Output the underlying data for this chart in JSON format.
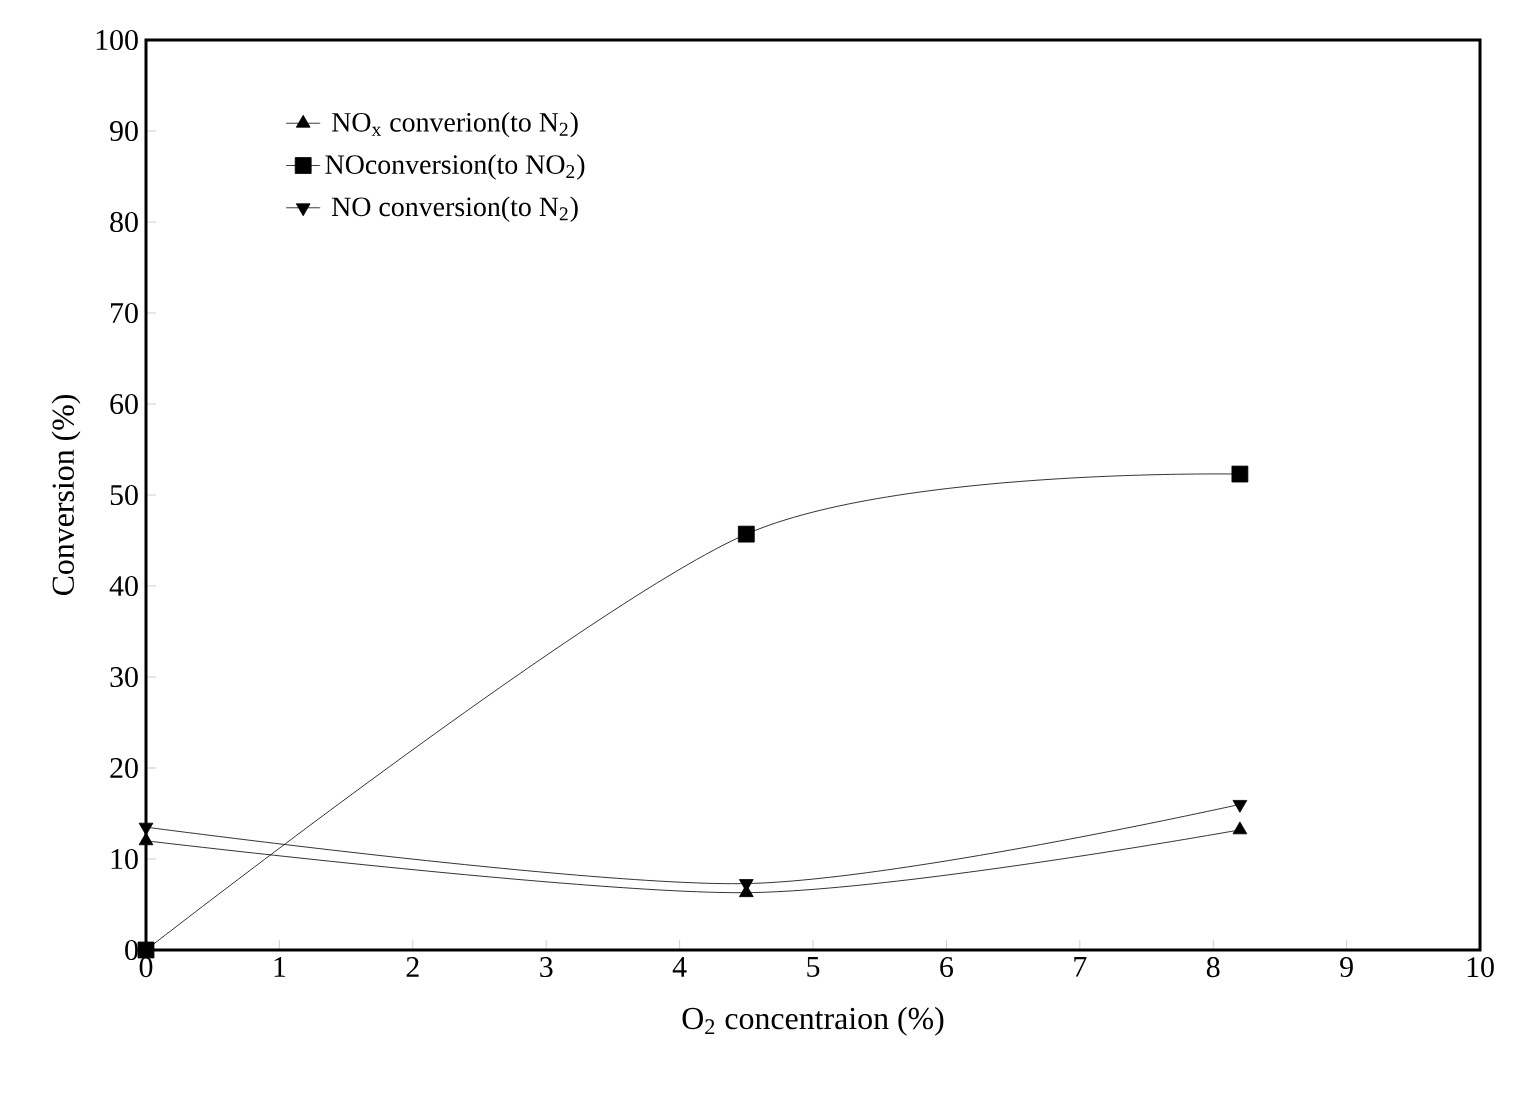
{
  "chart_data": {
    "type": "line",
    "xlabel": "O$_{2}$ concentraion (%)",
    "ylabel": "Conversion (%)",
    "xlim": [
      0,
      10
    ],
    "ylim": [
      0,
      100
    ],
    "xticks": [
      0,
      1,
      2,
      3,
      4,
      5,
      6,
      7,
      8,
      9,
      10
    ],
    "yticks": [
      0,
      10,
      20,
      30,
      40,
      50,
      60,
      70,
      80,
      90,
      100
    ],
    "x": [
      0,
      4.5,
      8.2
    ],
    "grid": false,
    "legend": "top left",
    "line_style": "solid",
    "series": [
      {
        "name": "NO$_{x}$ converion(to N$_{2}$)",
        "color": "#000000",
        "marker": "triangle",
        "values": [
          12,
          6.3,
          13.2
        ]
      },
      {
        "name": "NOconversion(to NO$_{2}$)",
        "color": "#000000",
        "marker": "square",
        "values": [
          0,
          45.7,
          52.3
        ]
      },
      {
        "name": "NO conversion(to N$_{2}$)",
        "color": "#000000",
        "marker": "triangle down",
        "values": [
          13.5,
          7.3,
          16
        ]
      }
    ]
  }
}
